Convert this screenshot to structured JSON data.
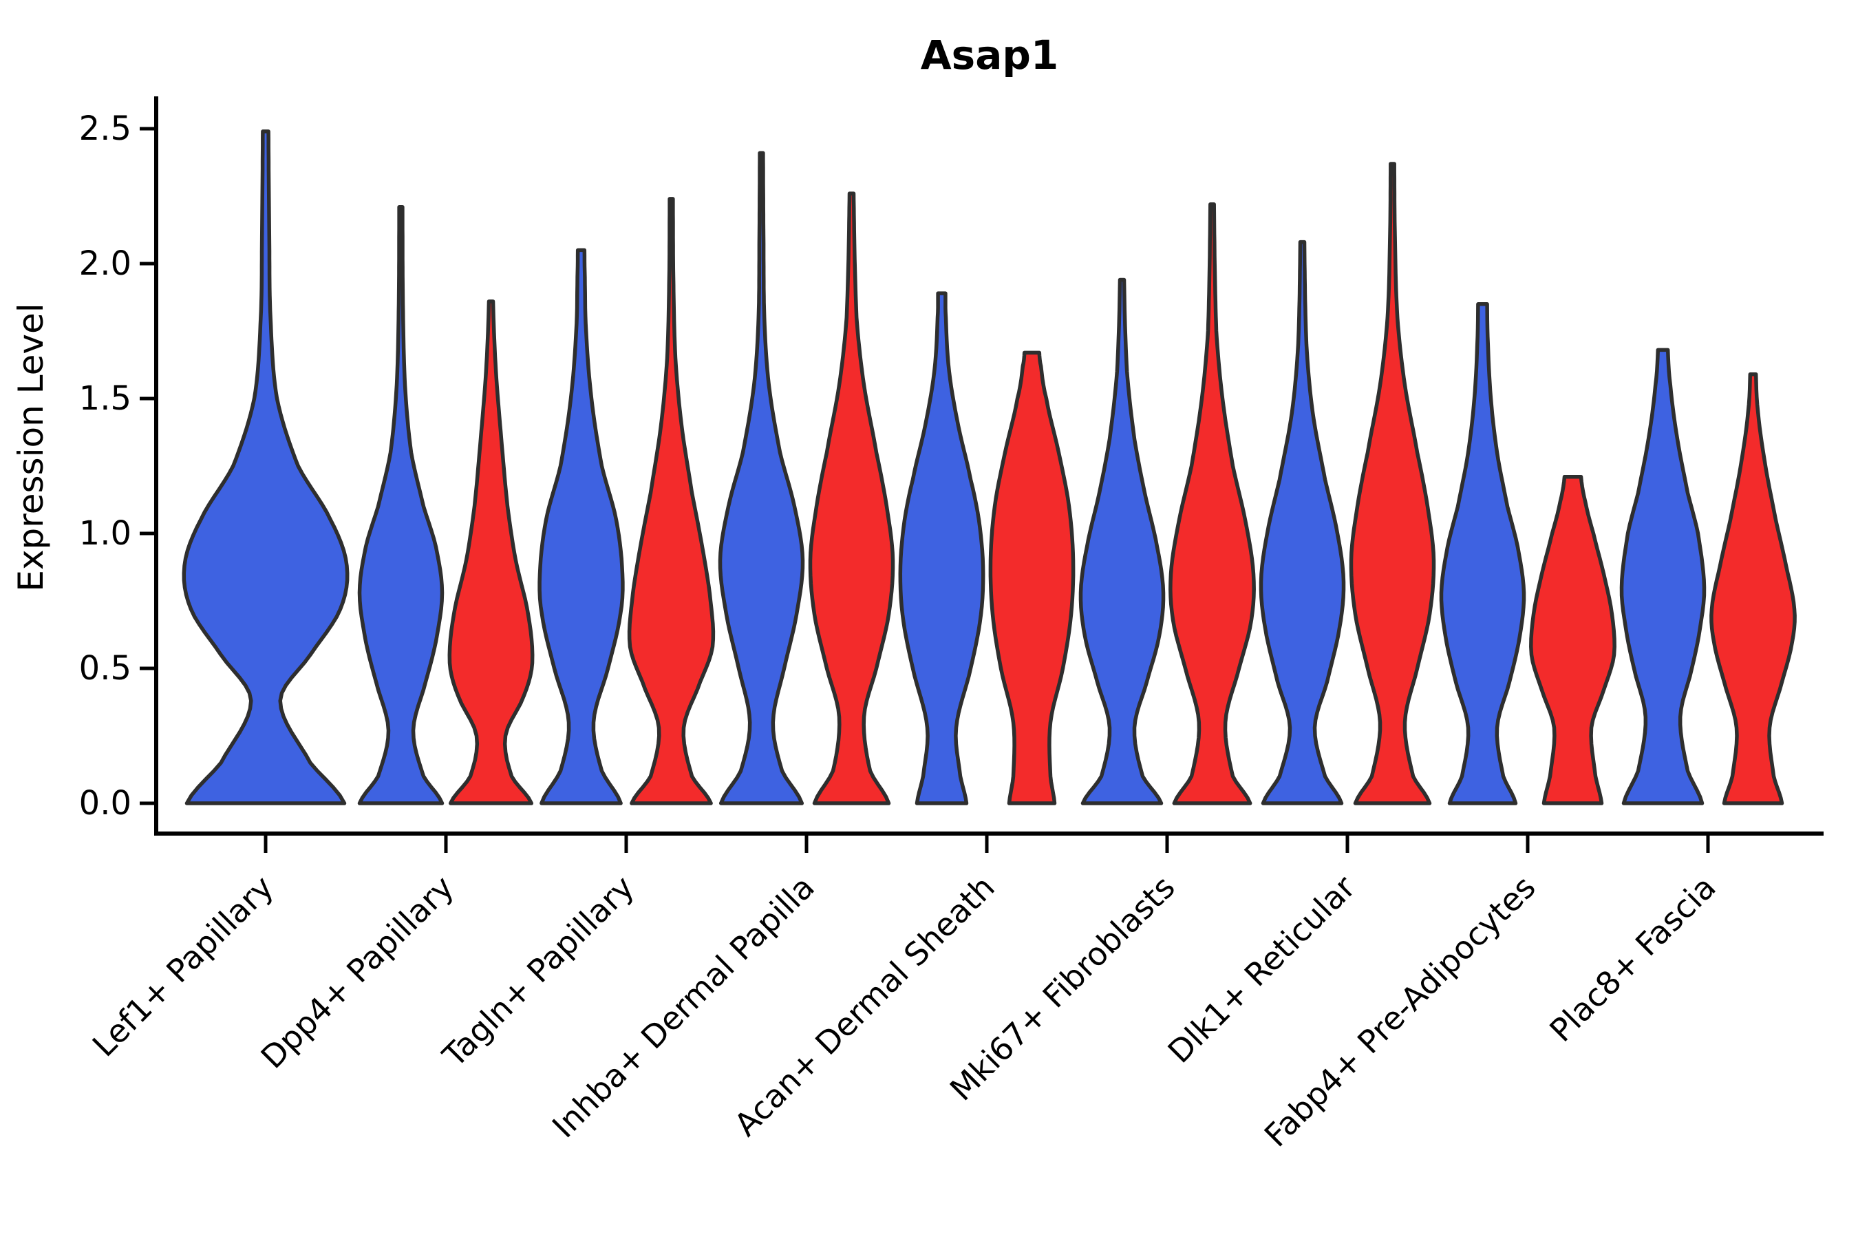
{
  "page": {
    "background": "#ffffff"
  },
  "chart_data": {
    "type": "violin",
    "title": "Asap1",
    "xlabel": "",
    "ylabel": "Expression Level",
    "ytick_labels": [
      "0.0",
      "0.5",
      "1.0",
      "1.5",
      "2.0",
      "2.5"
    ],
    "ytick_values": [
      0.0,
      0.5,
      1.0,
      1.5,
      2.0,
      2.5
    ],
    "ylim": [
      -0.11,
      2.62
    ],
    "grid": false,
    "legend": "none",
    "x_tick_label_rotation": 45,
    "colors": {
      "series_blue": "#3E62E1",
      "series_red": "#F32B2B",
      "violin_edge": "#2E2E2E",
      "axis": "#000000",
      "text": "#000000"
    },
    "categories": [
      "Lef1+ Papillary",
      "Dpp4+ Papillary",
      "Tagln+ Papillary",
      "Inhba+ Dermal Papilla",
      "Acan+ Dermal Sheath",
      "Mki67+ Fibroblasts",
      "Dlk1+ Reticular",
      "Fabp4+ Pre-Adipocytes",
      "Plac8+ Fascia"
    ],
    "groups": [
      {
        "category": "Lef1+ Papillary",
        "violins": [
          {
            "color": "blue",
            "max": 2.49,
            "profile": [
              [
                0,
                0.97
              ],
              [
                0.15,
                0.55
              ],
              [
                0.38,
                0.18
              ],
              [
                0.55,
                0.55
              ],
              [
                0.72,
                0.92
              ],
              [
                0.88,
                1.0
              ],
              [
                1.05,
                0.8
              ],
              [
                1.25,
                0.4
              ],
              [
                1.5,
                0.14
              ],
              [
                1.8,
                0.06
              ],
              [
                2.1,
                0.045
              ],
              [
                2.49,
                0.035
              ]
            ]
          }
        ]
      },
      {
        "category": "Dpp4+ Papillary",
        "violins": [
          {
            "color": "blue",
            "max": 2.21,
            "profile": [
              [
                0,
                1.0
              ],
              [
                0.1,
                0.55
              ],
              [
                0.27,
                0.3
              ],
              [
                0.45,
                0.6
              ],
              [
                0.6,
                0.85
              ],
              [
                0.78,
                1.0
              ],
              [
                0.95,
                0.85
              ],
              [
                1.1,
                0.55
              ],
              [
                1.3,
                0.25
              ],
              [
                1.55,
                0.1
              ],
              [
                1.85,
                0.05
              ],
              [
                2.21,
                0.04
              ]
            ]
          },
          {
            "color": "red",
            "max": 1.86,
            "profile": [
              [
                0,
                0.98
              ],
              [
                0.1,
                0.5
              ],
              [
                0.25,
                0.35
              ],
              [
                0.4,
                0.8
              ],
              [
                0.52,
                1.0
              ],
              [
                0.7,
                0.9
              ],
              [
                0.9,
                0.6
              ],
              [
                1.1,
                0.4
              ],
              [
                1.35,
                0.25
              ],
              [
                1.6,
                0.12
              ],
              [
                1.86,
                0.05
              ]
            ]
          }
        ]
      },
      {
        "category": "Tagln+ Papillary",
        "violins": [
          {
            "color": "blue",
            "max": 2.05,
            "profile": [
              [
                0,
                0.96
              ],
              [
                0.12,
                0.5
              ],
              [
                0.3,
                0.3
              ],
              [
                0.5,
                0.65
              ],
              [
                0.7,
                0.95
              ],
              [
                0.85,
                1.0
              ],
              [
                1.05,
                0.85
              ],
              [
                1.25,
                0.5
              ],
              [
                1.5,
                0.25
              ],
              [
                1.75,
                0.12
              ],
              [
                1.95,
                0.09
              ],
              [
                2.05,
                0.08
              ]
            ]
          },
          {
            "color": "red",
            "max": 2.24,
            "profile": [
              [
                0,
                0.96
              ],
              [
                0.1,
                0.5
              ],
              [
                0.28,
                0.3
              ],
              [
                0.45,
                0.7
              ],
              [
                0.58,
                1.0
              ],
              [
                0.75,
                0.95
              ],
              [
                0.95,
                0.75
              ],
              [
                1.15,
                0.5
              ],
              [
                1.4,
                0.25
              ],
              [
                1.65,
                0.1
              ],
              [
                1.95,
                0.05
              ],
              [
                2.24,
                0.04
              ]
            ]
          }
        ]
      },
      {
        "category": "Inhba+ Dermal Papilla",
        "violins": [
          {
            "color": "blue",
            "max": 2.41,
            "profile": [
              [
                0,
                0.98
              ],
              [
                0.12,
                0.5
              ],
              [
                0.3,
                0.28
              ],
              [
                0.5,
                0.55
              ],
              [
                0.7,
                0.85
              ],
              [
                0.9,
                1.0
              ],
              [
                1.1,
                0.8
              ],
              [
                1.3,
                0.45
              ],
              [
                1.55,
                0.18
              ],
              [
                1.8,
                0.07
              ],
              [
                2.1,
                0.05
              ],
              [
                2.41,
                0.04
              ]
            ]
          },
          {
            "color": "red",
            "max": 2.26,
            "profile": [
              [
                0,
                0.9
              ],
              [
                0.12,
                0.45
              ],
              [
                0.32,
                0.3
              ],
              [
                0.5,
                0.6
              ],
              [
                0.7,
                0.9
              ],
              [
                0.9,
                1.0
              ],
              [
                1.1,
                0.85
              ],
              [
                1.3,
                0.6
              ],
              [
                1.55,
                0.3
              ],
              [
                1.8,
                0.12
              ],
              [
                2.26,
                0.05
              ]
            ]
          }
        ]
      },
      {
        "category": "Acan+ Dermal Sheath",
        "violins": [
          {
            "color": "blue",
            "max": 1.89,
            "profile": [
              [
                0,
                0.6
              ],
              [
                0.1,
                0.45
              ],
              [
                0.28,
                0.35
              ],
              [
                0.5,
                0.7
              ],
              [
                0.7,
                0.95
              ],
              [
                0.88,
                1.0
              ],
              [
                1.05,
                0.9
              ],
              [
                1.2,
                0.7
              ],
              [
                1.4,
                0.4
              ],
              [
                1.6,
                0.18
              ],
              [
                1.8,
                0.1
              ],
              [
                1.89,
                0.09
              ]
            ]
          },
          {
            "color": "red",
            "max": 1.67,
            "profile": [
              [
                0,
                0.55
              ],
              [
                0.1,
                0.45
              ],
              [
                0.3,
                0.45
              ],
              [
                0.5,
                0.75
              ],
              [
                0.7,
                0.95
              ],
              [
                0.9,
                1.0
              ],
              [
                1.1,
                0.9
              ],
              [
                1.3,
                0.65
              ],
              [
                1.5,
                0.35
              ],
              [
                1.62,
                0.22
              ],
              [
                1.67,
                0.18
              ]
            ]
          }
        ]
      },
      {
        "category": "Mki67+ Fibroblasts",
        "violins": [
          {
            "color": "blue",
            "max": 1.94,
            "profile": [
              [
                0,
                0.95
              ],
              [
                0.1,
                0.5
              ],
              [
                0.28,
                0.3
              ],
              [
                0.45,
                0.6
              ],
              [
                0.62,
                0.9
              ],
              [
                0.78,
                1.0
              ],
              [
                0.95,
                0.85
              ],
              [
                1.15,
                0.55
              ],
              [
                1.35,
                0.3
              ],
              [
                1.6,
                0.12
              ],
              [
                1.94,
                0.05
              ]
            ]
          },
          {
            "color": "red",
            "max": 2.22,
            "profile": [
              [
                0,
                0.92
              ],
              [
                0.1,
                0.5
              ],
              [
                0.3,
                0.32
              ],
              [
                0.5,
                0.65
              ],
              [
                0.68,
                0.95
              ],
              [
                0.85,
                1.0
              ],
              [
                1.05,
                0.8
              ],
              [
                1.25,
                0.5
              ],
              [
                1.5,
                0.25
              ],
              [
                1.75,
                0.1
              ],
              [
                2.22,
                0.045
              ]
            ]
          }
        ]
      },
      {
        "category": "Dlk1+ Reticular",
        "violins": [
          {
            "color": "blue",
            "max": 2.08,
            "profile": [
              [
                0,
                0.95
              ],
              [
                0.1,
                0.55
              ],
              [
                0.28,
                0.3
              ],
              [
                0.45,
                0.6
              ],
              [
                0.65,
                0.9
              ],
              [
                0.82,
                1.0
              ],
              [
                1.0,
                0.85
              ],
              [
                1.2,
                0.55
              ],
              [
                1.45,
                0.25
              ],
              [
                1.7,
                0.1
              ],
              [
                2.08,
                0.05
              ]
            ]
          },
          {
            "color": "red",
            "max": 2.37,
            "profile": [
              [
                0,
                0.9
              ],
              [
                0.1,
                0.5
              ],
              [
                0.3,
                0.3
              ],
              [
                0.5,
                0.6
              ],
              [
                0.7,
                0.9
              ],
              [
                0.9,
                1.0
              ],
              [
                1.1,
                0.85
              ],
              [
                1.3,
                0.6
              ],
              [
                1.55,
                0.3
              ],
              [
                1.8,
                0.12
              ],
              [
                2.1,
                0.06
              ],
              [
                2.37,
                0.045
              ]
            ]
          }
        ]
      },
      {
        "category": "Fabp4+ Pre-Adipocytes",
        "violins": [
          {
            "color": "blue",
            "max": 1.85,
            "profile": [
              [
                0,
                0.8
              ],
              [
                0.1,
                0.5
              ],
              [
                0.28,
                0.35
              ],
              [
                0.45,
                0.65
              ],
              [
                0.62,
                0.9
              ],
              [
                0.78,
                1.0
              ],
              [
                0.95,
                0.85
              ],
              [
                1.1,
                0.6
              ],
              [
                1.3,
                0.35
              ],
              [
                1.5,
                0.2
              ],
              [
                1.7,
                0.13
              ],
              [
                1.85,
                0.11
              ]
            ]
          },
          {
            "color": "red",
            "max": 1.21,
            "profile": [
              [
                0,
                0.7
              ],
              [
                0.1,
                0.55
              ],
              [
                0.28,
                0.45
              ],
              [
                0.42,
                0.75
              ],
              [
                0.55,
                1.0
              ],
              [
                0.7,
                0.95
              ],
              [
                0.85,
                0.75
              ],
              [
                1.0,
                0.5
              ],
              [
                1.12,
                0.3
              ],
              [
                1.21,
                0.2
              ]
            ]
          }
        ]
      },
      {
        "category": "Plac8+ Fascia",
        "violins": [
          {
            "color": "blue",
            "max": 1.68,
            "profile": [
              [
                0,
                0.95
              ],
              [
                0.12,
                0.6
              ],
              [
                0.32,
                0.42
              ],
              [
                0.5,
                0.7
              ],
              [
                0.65,
                0.9
              ],
              [
                0.8,
                1.0
              ],
              [
                1.0,
                0.85
              ],
              [
                1.15,
                0.6
              ],
              [
                1.35,
                0.35
              ],
              [
                1.55,
                0.18
              ],
              [
                1.68,
                0.12
              ]
            ]
          },
          {
            "color": "red",
            "max": 1.59,
            "profile": [
              [
                0,
                0.7
              ],
              [
                0.1,
                0.5
              ],
              [
                0.28,
                0.4
              ],
              [
                0.45,
                0.7
              ],
              [
                0.6,
                0.95
              ],
              [
                0.72,
                1.0
              ],
              [
                0.88,
                0.8
              ],
              [
                1.05,
                0.55
              ],
              [
                1.25,
                0.3
              ],
              [
                1.45,
                0.12
              ],
              [
                1.59,
                0.07
              ]
            ]
          }
        ]
      }
    ]
  }
}
